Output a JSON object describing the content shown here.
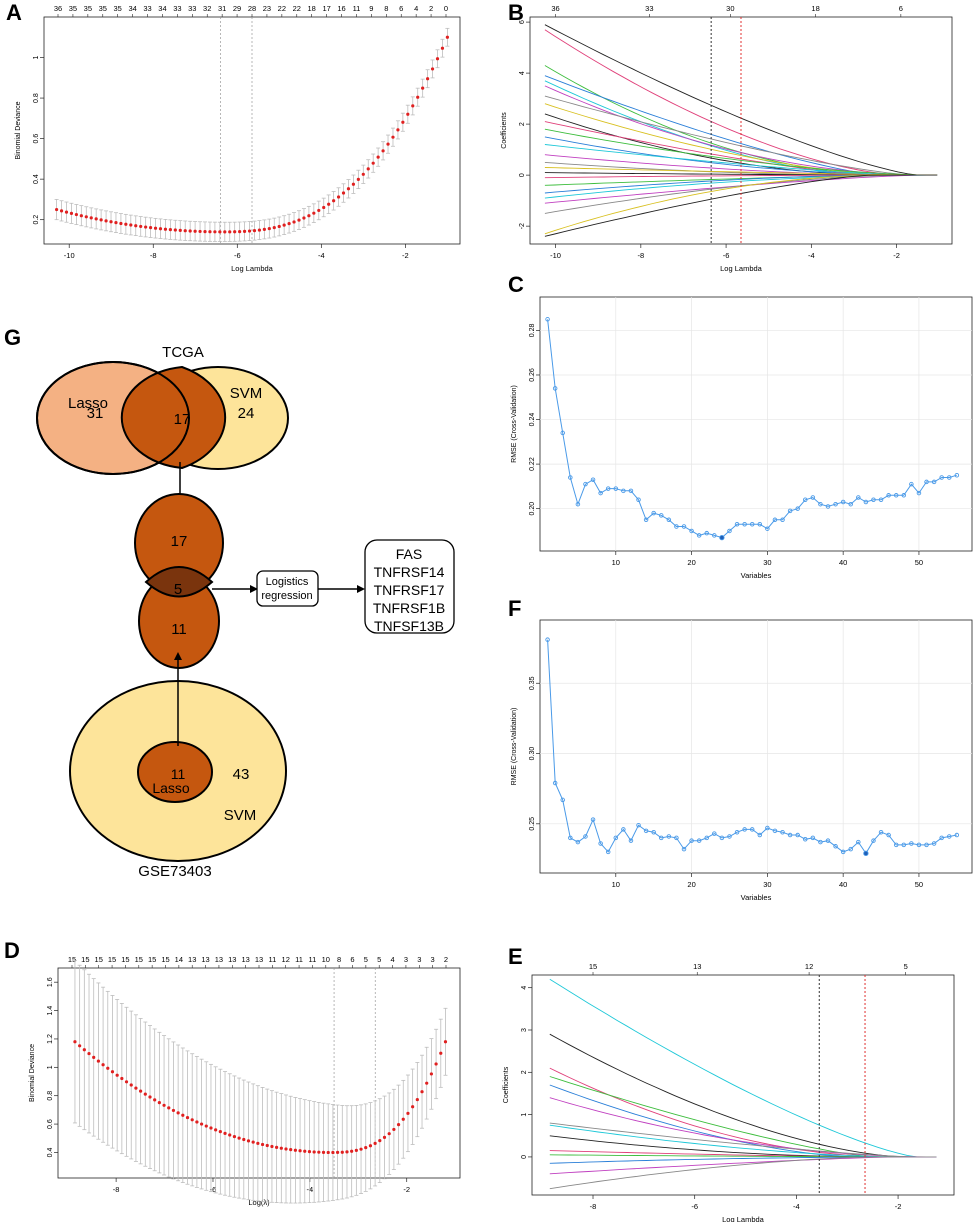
{
  "chart_data": [
    {
      "id": "A",
      "type": "line",
      "letter": "A",
      "xlabel": "Log Lambda",
      "ylabel": "Binomial Deviance",
      "xlim": [
        -10.6,
        -0.7
      ],
      "ylim": [
        0.08,
        1.2
      ],
      "xticks": [
        -10,
        -8,
        -6,
        -4,
        -2
      ],
      "yticks": [
        0.2,
        0.4,
        0.6,
        0.8,
        1.0
      ],
      "top_axis_labels": [
        "36",
        "35",
        "35",
        "35",
        "35",
        "34",
        "33",
        "34",
        "33",
        "33",
        "32",
        "31",
        "29",
        "28",
        "23",
        "22",
        "22",
        "18",
        "17",
        "16",
        "11",
        "9",
        "8",
        "6",
        "4",
        "2",
        "0"
      ],
      "vlines": [
        -6.4,
        -5.65
      ],
      "curve": {
        "x_start": -10.3,
        "x_end": -1.0,
        "n": 80,
        "min_x": -6.35,
        "min_y": 0.14,
        "start_y": 0.25,
        "end_y": 1.1,
        "err_start": 0.05,
        "err_end": 0.04
      }
    },
    {
      "id": "B",
      "type": "line",
      "letter": "B",
      "xlabel": "Log Lambda",
      "ylabel": "Coefficients",
      "xlim": [
        -10.6,
        -0.7
      ],
      "ylim": [
        -2.7,
        6.2
      ],
      "xticks": [
        -10,
        -8,
        -6,
        -4,
        -2
      ],
      "yticks": [
        -2,
        0,
        2,
        4,
        6
      ],
      "top_axis_labels": [
        "36",
        "33",
        "30",
        "18",
        "6"
      ],
      "top_axis_positions": [
        -10,
        -7.8,
        -5.9,
        -3.9,
        -1.9
      ],
      "vlines": [
        {
          "x": -6.35,
          "color": "#333333"
        },
        {
          "x": -5.65,
          "color": "#e03030"
        }
      ],
      "coef_starts": [
        5.9,
        5.7,
        4.3,
        3.9,
        3.7,
        3.5,
        3.1,
        2.8,
        2.4,
        2.1,
        1.8,
        1.5,
        1.2,
        0.8,
        0.5,
        0.3,
        0.1,
        -0.1,
        -0.4,
        -0.7,
        -0.9,
        -1.1,
        -1.5,
        -2.3,
        -2.4
      ],
      "palette": [
        "#222222",
        "#e0407a",
        "#3dbd3d",
        "#2a7fd8",
        "#1ec8d8",
        "#c040c0",
        "#888888",
        "#d8c020"
      ]
    },
    {
      "id": "C",
      "type": "line",
      "letter": "C",
      "xlabel": "Variables",
      "ylabel": "RMSE (Cross-Validation)",
      "xlim": [
        0,
        57
      ],
      "ylim": [
        0.181,
        0.295
      ],
      "xticks": [
        10,
        20,
        30,
        40,
        50
      ],
      "yticks": [
        0.2,
        0.22,
        0.24,
        0.26,
        0.28
      ],
      "ytick_labels": [
        "0.20",
        "0.22",
        "0.24",
        "0.26",
        "0.28"
      ],
      "x": [
        1,
        2,
        3,
        4,
        5,
        6,
        7,
        8,
        9,
        10,
        11,
        12,
        13,
        14,
        15,
        16,
        17,
        18,
        19,
        20,
        21,
        22,
        23,
        24,
        25,
        26,
        27,
        28,
        29,
        30,
        31,
        32,
        33,
        34,
        35,
        36,
        37,
        38,
        39,
        40,
        41,
        42,
        43,
        44,
        45,
        46,
        47,
        48,
        49,
        50,
        51,
        52,
        53,
        54,
        55
      ],
      "values": [
        0.285,
        0.254,
        0.234,
        0.214,
        0.202,
        0.211,
        0.213,
        0.207,
        0.209,
        0.209,
        0.208,
        0.208,
        0.204,
        0.195,
        0.198,
        0.197,
        0.195,
        0.192,
        0.192,
        0.19,
        0.188,
        0.189,
        0.188,
        0.187,
        0.19,
        0.193,
        0.193,
        0.193,
        0.193,
        0.191,
        0.195,
        0.195,
        0.199,
        0.2,
        0.204,
        0.205,
        0.202,
        0.201,
        0.202,
        0.203,
        0.202,
        0.205,
        0.203,
        0.204,
        0.204,
        0.206,
        0.206,
        0.206,
        0.211,
        0.207,
        0.212,
        0.212,
        0.214,
        0.214,
        0.215
      ],
      "min_index": 23
    },
    {
      "id": "F",
      "type": "line",
      "letter": "F",
      "xlabel": "Variables",
      "ylabel": "RMSE (Cross-Validation)",
      "xlim": [
        0,
        57
      ],
      "ylim": [
        0.215,
        0.395
      ],
      "xticks": [
        10,
        20,
        30,
        40,
        50
      ],
      "yticks": [
        0.25,
        0.3,
        0.35
      ],
      "ytick_labels": [
        "0.25",
        "0.30",
        "0.35"
      ],
      "x": [
        1,
        2,
        3,
        4,
        5,
        6,
        7,
        8,
        9,
        10,
        11,
        12,
        13,
        14,
        15,
        16,
        17,
        18,
        19,
        20,
        21,
        22,
        23,
        24,
        25,
        26,
        27,
        28,
        29,
        30,
        31,
        32,
        33,
        34,
        35,
        36,
        37,
        38,
        39,
        40,
        41,
        42,
        43,
        44,
        45,
        46,
        47,
        48,
        49,
        50,
        51,
        52,
        53,
        54,
        55
      ],
      "values": [
        0.381,
        0.279,
        0.267,
        0.24,
        0.237,
        0.241,
        0.253,
        0.236,
        0.23,
        0.24,
        0.246,
        0.238,
        0.249,
        0.245,
        0.244,
        0.24,
        0.241,
        0.24,
        0.232,
        0.238,
        0.238,
        0.24,
        0.243,
        0.24,
        0.241,
        0.244,
        0.246,
        0.246,
        0.242,
        0.247,
        0.245,
        0.244,
        0.242,
        0.242,
        0.239,
        0.24,
        0.237,
        0.238,
        0.234,
        0.23,
        0.232,
        0.237,
        0.229,
        0.238,
        0.244,
        0.242,
        0.235,
        0.235,
        0.236,
        0.235,
        0.235,
        0.236,
        0.24,
        0.241,
        0.242
      ],
      "min_index": 42
    },
    {
      "id": "D",
      "type": "line",
      "letter": "D",
      "xlabel": "Log(λ)",
      "ylabel": "Binomial Deviance",
      "xlim": [
        -9.2,
        -0.9
      ],
      "ylim": [
        0.22,
        1.7
      ],
      "xticks": [
        -8,
        -6,
        -4,
        -2
      ],
      "yticks": [
        0.4,
        0.6,
        0.8,
        1.0,
        1.2,
        1.4,
        1.6
      ],
      "top_axis_labels": [
        "15",
        "15",
        "15",
        "15",
        "15",
        "15",
        "15",
        "15",
        "14",
        "13",
        "13",
        "13",
        "13",
        "13",
        "13",
        "11",
        "12",
        "11",
        "11",
        "10",
        "8",
        "6",
        "5",
        "5",
        "4",
        "3",
        "3",
        "3",
        "2"
      ],
      "vlines": [
        -3.5,
        -2.65
      ],
      "curve": {
        "x_start": -8.85,
        "x_end": -1.2,
        "n": 80,
        "min_x": -3.55,
        "min_y": 0.4,
        "start_y": 1.18,
        "end_y": 1.18,
        "err_start": 0.44,
        "err_end": 0.1
      }
    },
    {
      "id": "E",
      "type": "line",
      "letter": "E",
      "xlabel": "Log Lambda",
      "ylabel": "Coefficients",
      "xlim": [
        -9.2,
        -0.9
      ],
      "ylim": [
        -0.9,
        4.3
      ],
      "xticks": [
        -8,
        -6,
        -4,
        -2
      ],
      "yticks": [
        0,
        1,
        2,
        3,
        4
      ],
      "top_axis_labels": [
        "15",
        "13",
        "12",
        "5"
      ],
      "top_axis_positions": [
        -8,
        -5.95,
        -3.75,
        -1.85
      ],
      "vlines": [
        {
          "x": -3.55,
          "color": "#333333"
        },
        {
          "x": -2.65,
          "color": "#e03030"
        }
      ],
      "coef_starts": [
        4.2,
        2.9,
        2.1,
        1.9,
        1.7,
        1.4,
        0.8,
        0.75,
        0.5,
        0.15,
        0.05,
        -0.15,
        -0.4,
        -0.75
      ],
      "palette": [
        "#1ec8d8",
        "#222222",
        "#e0407a",
        "#3dbd3d",
        "#2a7fd8",
        "#c040c0",
        "#888888"
      ]
    }
  ],
  "venn": {
    "letter": "G",
    "tcga_label": "TCGA",
    "lasso_label": "Lasso",
    "lasso_count": "31",
    "svm_label": "SVM",
    "svm_count": "24",
    "tcga_overlap": "17",
    "mid_top": "17",
    "mid_overlap": "5",
    "mid_bottom": "11",
    "logistic_label_line1": "Logistics",
    "logistic_label_line2": "regression",
    "genes": [
      "FAS",
      "TNFRSF14",
      "TNFRSF17",
      "TNFRSF1B",
      "TNFSF13B"
    ],
    "geo_lasso_count": "11",
    "geo_lasso_label": "Lasso",
    "geo_svm_count": "43",
    "geo_svm_label": "SVM",
    "geo_label": "GSE73403"
  },
  "colors": {
    "lasso_fill": "#f4b183",
    "svm_fill": "#fde49a",
    "overlap_fill": "#c5570f",
    "deep_overlap": "#7a340d",
    "error_bar": "#b8b8b8",
    "point_red": "#e02020",
    "rmse_line": "#4a9ae8"
  }
}
